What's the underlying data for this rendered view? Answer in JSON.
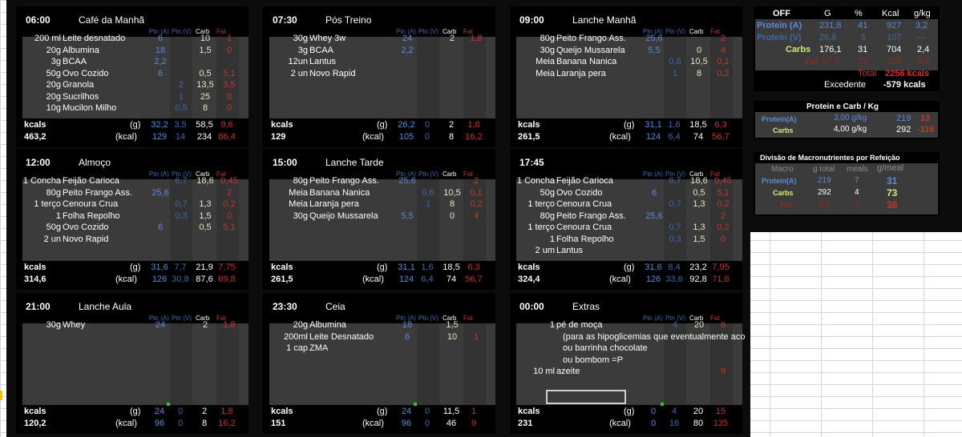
{
  "col_headers": {
    "ptn_a": "Ptn (A)",
    "ptn_v": "Ptn (V)",
    "carb": "Carb",
    "fat": "Fat"
  },
  "footer_labels": {
    "kcals": "kcals",
    "g": "(g)",
    "kcal": "(kcal)"
  },
  "meals": [
    {
      "time": "06:00",
      "name": "Café da Manhã",
      "kcal_total": "463,2",
      "items": [
        {
          "qty": "200 ml",
          "food": "Leite desnatado",
          "a": "6",
          "v": "",
          "c": "10",
          "f": "1"
        },
        {
          "qty": "20g",
          "food": "Albumina",
          "a": "18",
          "v": "",
          "c": "1,5",
          "f": "0"
        },
        {
          "qty": "3g",
          "food": "BCAA",
          "a": "2,2",
          "v": "",
          "c": "",
          "f": ""
        },
        {
          "qty": "50g",
          "food": "Ovo Cozido",
          "a": "6",
          "v": "",
          "c": "0,5",
          "f": "5,1"
        },
        {
          "qty": "20g",
          "food": "Granola",
          "a": "",
          "v": "2",
          "c": "13,5",
          "f": "3,5"
        },
        {
          "qty": "20g",
          "food": "Sucrilhos",
          "a": "",
          "v": "1",
          "c": "25",
          "f": "0"
        },
        {
          "qty": "10g",
          "food": "Mucilon Milho",
          "a": "",
          "v": "0,5",
          "c": "8",
          "f": "0"
        }
      ],
      "g": {
        "a": "32,2",
        "v": "3,5",
        "c": "58,5",
        "f": "9,6"
      },
      "kcal": {
        "a": "129",
        "v": "14",
        "c": "234",
        "f": "86,4"
      }
    },
    {
      "time": "07:30",
      "name": "Pós Treino",
      "kcal_total": "129",
      "items": [
        {
          "qty": "30g",
          "food": "Whey 3w",
          "a": "24",
          "v": "",
          "c": "2",
          "f": "1,8"
        },
        {
          "qty": "3g",
          "food": "BCAA",
          "a": "2,2",
          "v": "",
          "c": "",
          "f": ""
        },
        {
          "qty": "12un",
          "food": "Lantus",
          "a": "",
          "v": "",
          "c": "",
          "f": ""
        },
        {
          "qty": "2 un",
          "food": "Novo Rapid",
          "a": "",
          "v": "",
          "c": "",
          "f": ""
        }
      ],
      "g": {
        "a": "26,2",
        "v": "0",
        "c": "2",
        "f": "1,8"
      },
      "kcal": {
        "a": "105",
        "v": "0",
        "c": "8",
        "f": "16,2"
      }
    },
    {
      "time": "09:00",
      "name": "Lanche Manhã",
      "kcal_total": "261,5",
      "items": [
        {
          "qty": "80g",
          "food": "Peito Frango Ass.",
          "a": "25,6",
          "v": "",
          "c": "",
          "f": "2"
        },
        {
          "qty": "30g",
          "food": "Queijo Mussarela",
          "a": "5,5",
          "v": "",
          "c": "0",
          "f": "4"
        },
        {
          "qty": "Meia",
          "food": "Banana Nanica",
          "a": "",
          "v": "0,6",
          "c": "10,5",
          "f": "0,1"
        },
        {
          "qty": "Meia",
          "food": "Laranja pera",
          "a": "",
          "v": "1",
          "c": "8",
          "f": "0,2"
        }
      ],
      "g": {
        "a": "31,1",
        "v": "1,6",
        "c": "18,5",
        "f": "6,3"
      },
      "kcal": {
        "a": "124",
        "v": "6,4",
        "c": "74",
        "f": "56,7"
      }
    },
    {
      "time": "12:00",
      "name": "Almoço",
      "kcal_total": "314,6",
      "items": [
        {
          "qty": "1 Concha",
          "food": "Feijão Carioca",
          "a": "",
          "v": "6,7",
          "c": "18,6",
          "f": "0,45"
        },
        {
          "qty": "80g",
          "food": "Peito Frango Ass.",
          "a": "25,6",
          "v": "",
          "c": "",
          "f": "2"
        },
        {
          "qty": "1 terço",
          "food": "Cenoura Crua",
          "a": "",
          "v": "0,7",
          "c": "1,3",
          "f": "0,2"
        },
        {
          "qty": "1",
          "food": "Folha Repolho",
          "a": "",
          "v": "0,3",
          "c": "1,5",
          "f": "0"
        },
        {
          "qty": "50g",
          "food": "Ovo Cozido",
          "a": "6",
          "v": "",
          "c": "0,5",
          "f": "5,1"
        },
        {
          "qty": "2 un",
          "food": "Novo Rapid",
          "a": "",
          "v": "",
          "c": "",
          "f": ""
        }
      ],
      "g": {
        "a": "31,6",
        "v": "7,7",
        "c": "21,9",
        "f": "7,75"
      },
      "kcal": {
        "a": "126",
        "v": "30,8",
        "c": "87,6",
        "f": "69,8"
      }
    },
    {
      "time": "15:00",
      "name": "Lanche Tarde",
      "kcal_total": "261,5",
      "items": [
        {
          "qty": "80g",
          "food": "Peito Frango Ass.",
          "a": "25,6",
          "v": "",
          "c": "",
          "f": "2"
        },
        {
          "qty": "Meia",
          "food": "Banana Nanica",
          "a": "",
          "v": "0,6",
          "c": "10,5",
          "f": "0,1"
        },
        {
          "qty": "Meia",
          "food": "Laranja pera",
          "a": "",
          "v": "1",
          "c": "8",
          "f": "0,2"
        },
        {
          "qty": "30g",
          "food": "Queijo Mussarela",
          "a": "5,5",
          "v": "",
          "c": "0",
          "f": "4"
        }
      ],
      "g": {
        "a": "31,1",
        "v": "1,6",
        "c": "18,5",
        "f": "6,3"
      },
      "kcal": {
        "a": "124",
        "v": "6,4",
        "c": "74",
        "f": "56,7"
      }
    },
    {
      "time": "17:45",
      "name": "",
      "kcal_total": "324,4",
      "items": [
        {
          "qty": "1 Concha",
          "food": "Feijão Carioca",
          "a": "",
          "v": "6,7",
          "c": "18,6",
          "f": "0,45"
        },
        {
          "qty": "50g",
          "food": "Ovo Cozido",
          "a": "6",
          "v": "",
          "c": "0,5",
          "f": "5,1"
        },
        {
          "qty": "1 terço",
          "food": "Cenoura Crua",
          "a": "",
          "v": "0,7",
          "c": "1,3",
          "f": "0,2"
        },
        {
          "qty": "80g",
          "food": "Peito Frango Ass.",
          "a": "25,6",
          "v": "",
          "c": "",
          "f": "2"
        },
        {
          "qty": "1 terço",
          "food": "Cenoura Crua",
          "a": "",
          "v": "0,7",
          "c": "1,3",
          "f": "0,2"
        },
        {
          "qty": "1",
          "food": "Folha Repolho",
          "a": "",
          "v": "0,3",
          "c": "1,5",
          "f": "0"
        },
        {
          "qty": "2 um",
          "food": "Lantus",
          "a": "",
          "v": "",
          "c": "",
          "f": ""
        }
      ],
      "g": {
        "a": "31,6",
        "v": "8,4",
        "c": "23,2",
        "f": "7,95"
      },
      "kcal": {
        "a": "126",
        "v": "33,6",
        "c": "92,8",
        "f": "71,6"
      }
    },
    {
      "time": "21:00",
      "name": "Lanche Aula",
      "kcal_total": "120,2",
      "items": [
        {
          "qty": "30g",
          "food": "Whey",
          "a": "24",
          "v": "",
          "c": "2",
          "f": "1,8"
        }
      ],
      "g": {
        "a": "24",
        "v": "0",
        "c": "2",
        "f": "1,8"
      },
      "kcal": {
        "a": "96",
        "v": "0",
        "c": "8",
        "f": "16,2"
      }
    },
    {
      "time": "23:30",
      "name": "Ceia",
      "kcal_total": "151",
      "items": [
        {
          "qty": "20g",
          "food": "Albumina",
          "a": "18",
          "v": "",
          "c": "1,5",
          "f": ""
        },
        {
          "qty": "200ml",
          "food": "Leite Desnatado",
          "a": "6",
          "v": "",
          "c": "10",
          "f": "1"
        },
        {
          "qty": "1 cap",
          "food": "ZMA",
          "a": "",
          "v": "",
          "c": "",
          "f": ""
        }
      ],
      "g": {
        "a": "24",
        "v": "0",
        "c": "11,5",
        "f": "1"
      },
      "kcal": {
        "a": "96",
        "v": "0",
        "c": "46",
        "f": "9"
      }
    },
    {
      "time": "00:00",
      "name": "Extras",
      "kcal_total": "231",
      "items": [
        {
          "qty": "1",
          "food": "pé de moça",
          "a": "",
          "v": "4",
          "c": "20",
          "f": "6"
        },
        {
          "qty": "",
          "food": "(para as hipoglicemias que eventualmente aco",
          "a": "",
          "v": "",
          "c": "",
          "f": ""
        },
        {
          "qty": "",
          "food": "ou barrinha chocolate",
          "a": "",
          "v": "",
          "c": "",
          "f": ""
        },
        {
          "qty": "",
          "food": "ou bombom =P",
          "a": "",
          "v": "",
          "c": "",
          "f": ""
        },
        {
          "qty": "10 ml",
          "food": "azeite",
          "a": "",
          "v": "",
          "c": "",
          "f": "9"
        }
      ],
      "g": {
        "a": "0",
        "v": "4",
        "c": "20",
        "f": "15"
      },
      "kcal": {
        "a": "0",
        "v": "16",
        "c": "80",
        "f": "135"
      }
    }
  ],
  "summary": {
    "headers": [
      "OFF",
      "G",
      "%",
      "Kcal",
      "g/kg"
    ],
    "rows": [
      {
        "label": "Protein (A)",
        "g": "231,8",
        "pct": "41",
        "kcal": "927",
        "gkg": "3,2"
      },
      {
        "label": "Protein (V)",
        "g": "26,8",
        "pct": "5",
        "kcal": "107",
        "gkg": "---"
      },
      {
        "label": "Carbs",
        "g": "176,1",
        "pct": "31",
        "kcal": "704",
        "gkg": "2,4"
      },
      {
        "label": "Fat",
        "g": "57,5",
        "pct": "23",
        "kcal": "518",
        "gkg": "0,8"
      }
    ],
    "total_label": "Total",
    "total_value": "2256 kcals",
    "excedente_label": "Excedente",
    "excedente_value": "-579 kcals"
  },
  "protein_carb": {
    "title": "Protein e Carb / Kg",
    "rows": [
      {
        "label": "Protein(A)",
        "per": "3,00 g/kg",
        "val": "219",
        "diff": "13"
      },
      {
        "label": "Carbs",
        "per": "4,00 g/kg",
        "val": "292",
        "diff": "-116"
      }
    ]
  },
  "divisao": {
    "title": "Divisão de Macronutrientes por Refeição",
    "headers": [
      "Macro",
      "g total",
      "meals",
      "g/meal"
    ],
    "rows": [
      {
        "label": "Protein(A)",
        "total": "219",
        "meals": "7",
        "gmeal": "31"
      },
      {
        "label": "Carbs",
        "total": "292",
        "meals": "4",
        "gmeal": "73"
      },
      {
        "label": "Fat",
        "total": "115",
        "meals": "3",
        "gmeal": "38"
      }
    ]
  },
  "colors": {
    "background": "#0c0c0c",
    "panel": "#000000",
    "body": "#3b3b3b",
    "protein": "#5b8bd9",
    "fat": "#c0392b"
  }
}
